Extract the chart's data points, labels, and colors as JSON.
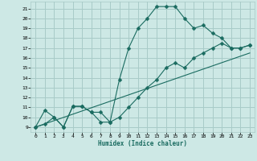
{
  "xlabel": "Humidex (Indice chaleur)",
  "background_color": "#cde8e5",
  "grid_color": "#a8cbc8",
  "line_color": "#1a6b60",
  "xlim": [
    -0.5,
    23.5
  ],
  "ylim": [
    8.5,
    21.7
  ],
  "yticks": [
    9,
    10,
    11,
    12,
    13,
    14,
    15,
    16,
    17,
    18,
    19,
    20,
    21
  ],
  "xticks": [
    0,
    1,
    2,
    3,
    4,
    5,
    6,
    7,
    8,
    9,
    10,
    11,
    12,
    13,
    14,
    15,
    16,
    17,
    18,
    19,
    20,
    21,
    22,
    23
  ],
  "line1_x": [
    0,
    1,
    2,
    3,
    4,
    5,
    6,
    7,
    8,
    9,
    10,
    11,
    12,
    13,
    14,
    15,
    16,
    17,
    18,
    19,
    20,
    21,
    22,
    23
  ],
  "line1_y": [
    9.0,
    10.7,
    10.0,
    9.0,
    11.1,
    11.1,
    10.5,
    9.5,
    9.5,
    13.8,
    17.0,
    19.0,
    20.0,
    21.2,
    21.2,
    21.2,
    20.0,
    19.0,
    19.3,
    18.5,
    18.0,
    17.0,
    17.0,
    17.3
  ],
  "line2_x": [
    0,
    1,
    2,
    3,
    4,
    5,
    6,
    7,
    8,
    9,
    10,
    11,
    12,
    13,
    14,
    15,
    16,
    17,
    18,
    19,
    20,
    21,
    22,
    23
  ],
  "line2_y": [
    9.0,
    9.3,
    10.0,
    9.0,
    11.1,
    11.1,
    10.5,
    10.5,
    9.5,
    10.0,
    11.0,
    12.0,
    13.0,
    13.8,
    15.0,
    15.5,
    15.0,
    16.0,
    16.5,
    17.0,
    17.5,
    17.0,
    17.0,
    17.3
  ],
  "line3_x": [
    0,
    23
  ],
  "line3_y": [
    9.0,
    16.5
  ]
}
